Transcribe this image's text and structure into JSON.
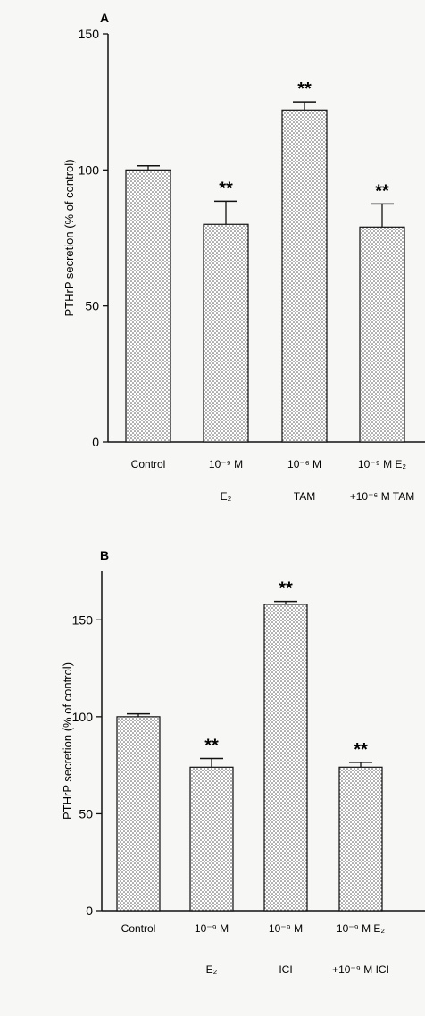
{
  "chart_data": [
    {
      "panel": "A",
      "type": "bar",
      "ylabel": "PTHrP secretion (% of control)",
      "ylim": [
        0,
        150
      ],
      "yticks": [
        "0",
        "50",
        "100",
        "150"
      ],
      "categories": [
        {
          "line1": "Control",
          "line2": ""
        },
        {
          "line1": "10⁻⁹ M",
          "line2": "E₂"
        },
        {
          "line1": "10⁻⁶ M",
          "line2": "TAM"
        },
        {
          "line1": "10⁻⁹ M E₂",
          "line2": "+10⁻⁶ M TAM"
        }
      ],
      "values": [
        100,
        80,
        122,
        79
      ],
      "errors": [
        1.5,
        8.5,
        3,
        8.5
      ],
      "significance": [
        "",
        "**",
        "**",
        "**"
      ]
    },
    {
      "panel": "B",
      "type": "bar",
      "ylabel": "PTHrP secretion (% of control)",
      "ylim": [
        0,
        175
      ],
      "yticks": [
        "0",
        "50",
        "100",
        "150"
      ],
      "categories": [
        {
          "line1": "Control",
          "line2": ""
        },
        {
          "line1": "10⁻⁹ M",
          "line2": "E₂"
        },
        {
          "line1": "10⁻⁹ M",
          "line2": "ICI"
        },
        {
          "line1": "10⁻⁹ M E₂",
          "line2": "+10⁻⁹ M ICI"
        }
      ],
      "values": [
        100,
        74,
        158,
        74
      ],
      "errors": [
        1.5,
        4.5,
        1.5,
        2.5
      ],
      "significance": [
        "",
        "**",
        "**",
        "**"
      ]
    }
  ]
}
